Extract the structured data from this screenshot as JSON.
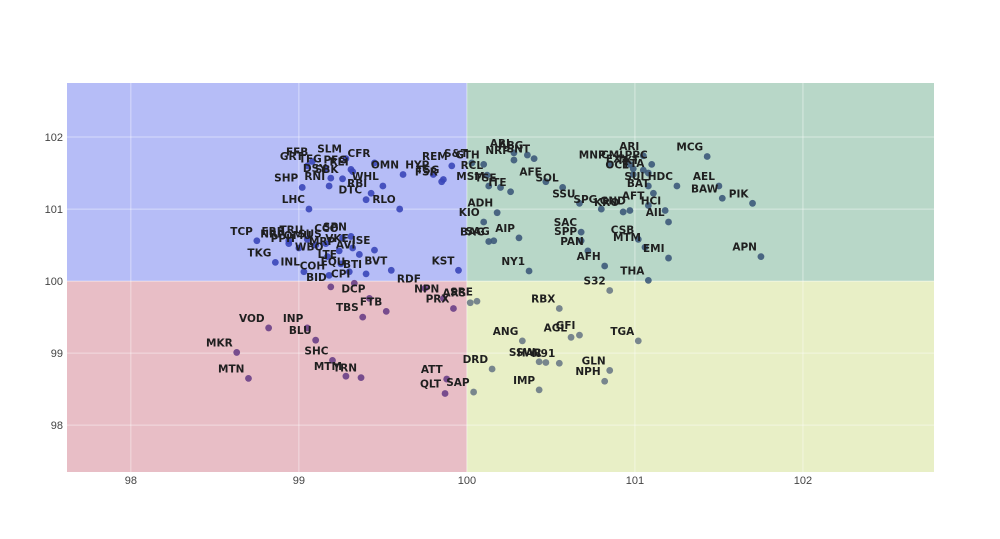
{
  "chart_data": {
    "type": "scatter",
    "title": "",
    "xlabel": "",
    "ylabel": "",
    "xlim": [
      97.62,
      102.78
    ],
    "ylim": [
      97.35,
      102.75
    ],
    "x_ticks": [
      98,
      99,
      100,
      101,
      102
    ],
    "y_ticks": [
      98,
      99,
      100,
      101,
      102
    ],
    "grid": true,
    "quadrants": {
      "x_split": 100,
      "y_split": 100,
      "colors": {
        "top_left": "#b6bdf7",
        "top_right": "#b8d7c8",
        "bottom_left": "#e8bec6",
        "bottom_right": "#e8efc6"
      }
    },
    "marker_colors": {
      "top_left": "#3a46b8",
      "top_right": "#3d5a7a",
      "bottom_left": "#6a3f86",
      "bottom_right": "#6c7a86"
    },
    "points": [
      {
        "label": "GRT",
        "x": 99.05,
        "y": 101.6
      },
      {
        "label": "FFB",
        "x": 99.08,
        "y": 101.66
      },
      {
        "label": "SLM",
        "x": 99.28,
        "y": 101.7
      },
      {
        "label": "CFR",
        "x": 99.45,
        "y": 101.64
      },
      {
        "label": "TFG",
        "x": 99.16,
        "y": 101.56
      },
      {
        "label": "PFG",
        "x": 99.31,
        "y": 101.55
      },
      {
        "label": "REI",
        "x": 99.32,
        "y": 101.52
      },
      {
        "label": "OMN",
        "x": 99.62,
        "y": 101.48
      },
      {
        "label": "HYP",
        "x": 99.8,
        "y": 101.48
      },
      {
        "label": "REM",
        "x": 99.91,
        "y": 101.6
      },
      {
        "label": "SHP",
        "x": 99.02,
        "y": 101.3
      },
      {
        "label": "DSY",
        "x": 99.19,
        "y": 101.43
      },
      {
        "label": "SBK",
        "x": 99.26,
        "y": 101.42
      },
      {
        "label": "RNI",
        "x": 99.18,
        "y": 101.32
      },
      {
        "label": "WHL",
        "x": 99.5,
        "y": 101.32
      },
      {
        "label": "TSG",
        "x": 99.86,
        "y": 101.41
      },
      {
        "label": "FSR",
        "x": 99.85,
        "y": 101.38
      },
      {
        "label": "DTC",
        "x": 99.4,
        "y": 101.13
      },
      {
        "label": "RBI",
        "x": 99.43,
        "y": 101.22
      },
      {
        "label": "LHC",
        "x": 99.06,
        "y": 101.0
      },
      {
        "label": "RLO",
        "x": 99.6,
        "y": 101.0
      },
      {
        "label": "TCP",
        "x": 98.75,
        "y": 100.56
      },
      {
        "label": "FRR",
        "x": 98.94,
        "y": 100.56
      },
      {
        "label": "TRU",
        "x": 99.05,
        "y": 100.58
      },
      {
        "label": "NRP",
        "x": 98.94,
        "y": 100.52
      },
      {
        "label": "PPH",
        "x": 99.0,
        "y": 100.46
      },
      {
        "label": "OMU",
        "x": 99.1,
        "y": 100.5
      },
      {
        "label": "SUS",
        "x": 99.16,
        "y": 100.52
      },
      {
        "label": "CCO",
        "x": 99.26,
        "y": 100.6
      },
      {
        "label": "SPN",
        "x": 99.31,
        "y": 100.62
      },
      {
        "label": "MRP",
        "x": 99.24,
        "y": 100.42
      },
      {
        "label": "WBO",
        "x": 99.17,
        "y": 100.34
      },
      {
        "label": "VKE",
        "x": 99.32,
        "y": 100.46
      },
      {
        "label": "AVI",
        "x": 99.36,
        "y": 100.37
      },
      {
        "label": "ISE",
        "x": 99.45,
        "y": 100.43
      },
      {
        "label": "LTE",
        "x": 99.25,
        "y": 100.24
      },
      {
        "label": "TKG",
        "x": 98.86,
        "y": 100.26
      },
      {
        "label": "INL",
        "x": 99.03,
        "y": 100.13
      },
      {
        "label": "COH",
        "x": 99.18,
        "y": 100.08
      },
      {
        "label": "EQU",
        "x": 99.3,
        "y": 100.13
      },
      {
        "label": "BTI",
        "x": 99.4,
        "y": 100.1
      },
      {
        "label": "BVT",
        "x": 99.55,
        "y": 100.15
      },
      {
        "label": "KST",
        "x": 99.95,
        "y": 100.15
      },
      {
        "label": "CPI",
        "x": 99.33,
        "y": 99.97
      },
      {
        "label": "BID",
        "x": 99.19,
        "y": 99.92
      },
      {
        "label": "RDF",
        "x": 99.75,
        "y": 99.9
      },
      {
        "label": "DCP",
        "x": 99.42,
        "y": 99.76
      },
      {
        "label": "NPN",
        "x": 99.86,
        "y": 99.76
      },
      {
        "label": "FTB",
        "x": 99.52,
        "y": 99.58
      },
      {
        "label": "PRX",
        "x": 99.92,
        "y": 99.62
      },
      {
        "label": "TBS",
        "x": 99.38,
        "y": 99.5
      },
      {
        "label": "INP",
        "x": 99.05,
        "y": 99.35
      },
      {
        "label": "VOD",
        "x": 98.82,
        "y": 99.35
      },
      {
        "label": "BLU",
        "x": 99.1,
        "y": 99.18
      },
      {
        "label": "MKR",
        "x": 98.63,
        "y": 99.01
      },
      {
        "label": "SHC",
        "x": 99.2,
        "y": 98.9
      },
      {
        "label": "MTN",
        "x": 98.7,
        "y": 98.65
      },
      {
        "label": "MTM",
        "x": 99.28,
        "y": 98.68
      },
      {
        "label": "TRN",
        "x": 99.37,
        "y": 98.66
      },
      {
        "label": "ATT",
        "x": 99.88,
        "y": 98.64
      },
      {
        "label": "QLT",
        "x": 99.87,
        "y": 98.44
      },
      {
        "label": "SAP",
        "x": 100.04,
        "y": 98.46
      },
      {
        "label": "S&T",
        "x": 100.03,
        "y": 101.64
      },
      {
        "label": "GTH",
        "x": 100.1,
        "y": 101.62
      },
      {
        "label": "ARI",
        "x": 100.28,
        "y": 101.78
      },
      {
        "label": "ABG",
        "x": 100.36,
        "y": 101.75
      },
      {
        "label": "NRP",
        "x": 100.28,
        "y": 101.68
      },
      {
        "label": "SNT",
        "x": 100.4,
        "y": 101.7
      },
      {
        "label": "ARI",
        "x": 101.05,
        "y": 101.74
      },
      {
        "label": "MCG",
        "x": 101.43,
        "y": 101.73
      },
      {
        "label": "RCL",
        "x": 100.12,
        "y": 101.47
      },
      {
        "label": "MSM",
        "x": 100.13,
        "y": 101.32
      },
      {
        "label": "TSE",
        "x": 100.2,
        "y": 101.3
      },
      {
        "label": "ITE",
        "x": 100.26,
        "y": 101.24
      },
      {
        "label": "AFE",
        "x": 100.47,
        "y": 101.38
      },
      {
        "label": "SOL",
        "x": 100.57,
        "y": 101.3
      },
      {
        "label": "MNP",
        "x": 100.85,
        "y": 101.62
      },
      {
        "label": "CML",
        "x": 100.97,
        "y": 101.62
      },
      {
        "label": "PPC",
        "x": 101.1,
        "y": 101.62
      },
      {
        "label": "EXX",
        "x": 100.99,
        "y": 101.56
      },
      {
        "label": "TXT",
        "x": 101.05,
        "y": 101.54
      },
      {
        "label": "OCE",
        "x": 100.99,
        "y": 101.48
      },
      {
        "label": "TTA",
        "x": 101.08,
        "y": 101.5
      },
      {
        "label": "AEL",
        "x": 101.5,
        "y": 101.32
      },
      {
        "label": "SUI",
        "x": 101.08,
        "y": 101.32
      },
      {
        "label": "HDC",
        "x": 101.25,
        "y": 101.32
      },
      {
        "label": "BAT",
        "x": 101.11,
        "y": 101.22
      },
      {
        "label": "BAW",
        "x": 101.52,
        "y": 101.15
      },
      {
        "label": "PIK",
        "x": 101.7,
        "y": 101.08
      },
      {
        "label": "SSU",
        "x": 100.67,
        "y": 101.08
      },
      {
        "label": "AFT",
        "x": 101.08,
        "y": 101.05
      },
      {
        "label": "SPG",
        "x": 100.8,
        "y": 101.0
      },
      {
        "label": "GND",
        "x": 100.97,
        "y": 100.98
      },
      {
        "label": "KRO",
        "x": 100.93,
        "y": 100.96
      },
      {
        "label": "HCI",
        "x": 101.18,
        "y": 100.98
      },
      {
        "label": "AIL",
        "x": 101.2,
        "y": 100.82
      },
      {
        "label": "KIO",
        "x": 100.1,
        "y": 100.82
      },
      {
        "label": "ADH",
        "x": 100.18,
        "y": 100.95
      },
      {
        "label": "SAC",
        "x": 100.68,
        "y": 100.68
      },
      {
        "label": "SPP",
        "x": 100.68,
        "y": 100.56
      },
      {
        "label": "CSB",
        "x": 101.02,
        "y": 100.58
      },
      {
        "label": "MTM",
        "x": 101.06,
        "y": 100.47
      },
      {
        "label": "PAN",
        "x": 100.72,
        "y": 100.42
      },
      {
        "label": "BAG",
        "x": 100.13,
        "y": 100.55
      },
      {
        "label": "SAG",
        "x": 100.16,
        "y": 100.56
      },
      {
        "label": "AIP",
        "x": 100.31,
        "y": 100.6
      },
      {
        "label": "EMI",
        "x": 101.2,
        "y": 100.32
      },
      {
        "label": "APN",
        "x": 101.75,
        "y": 100.34
      },
      {
        "label": "AFH",
        "x": 100.82,
        "y": 100.21
      },
      {
        "label": "NY1",
        "x": 100.37,
        "y": 100.14
      },
      {
        "label": "THA",
        "x": 101.08,
        "y": 100.01
      },
      {
        "label": "S32",
        "x": 100.85,
        "y": 99.87
      },
      {
        "label": "ARS",
        "x": 100.02,
        "y": 99.7
      },
      {
        "label": "SRE",
        "x": 100.06,
        "y": 99.72
      },
      {
        "label": "RBX",
        "x": 100.55,
        "y": 99.62
      },
      {
        "label": "ANG",
        "x": 100.33,
        "y": 99.17
      },
      {
        "label": "AGL",
        "x": 100.62,
        "y": 99.22
      },
      {
        "label": "GFI",
        "x": 100.67,
        "y": 99.25
      },
      {
        "label": "TGA",
        "x": 101.02,
        "y": 99.17
      },
      {
        "label": "DRD",
        "x": 100.15,
        "y": 98.78
      },
      {
        "label": "SSW",
        "x": 100.43,
        "y": 98.88
      },
      {
        "label": "HAR",
        "x": 100.47,
        "y": 98.87
      },
      {
        "label": "N91",
        "x": 100.55,
        "y": 98.86
      },
      {
        "label": "GLN",
        "x": 100.85,
        "y": 98.76
      },
      {
        "label": "NPH",
        "x": 100.82,
        "y": 98.61
      },
      {
        "label": "IMP",
        "x": 100.43,
        "y": 98.49
      }
    ]
  }
}
